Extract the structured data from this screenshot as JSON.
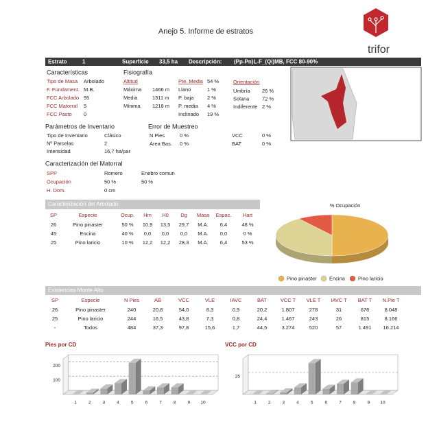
{
  "header": {
    "title": "Anejo 5. Informe de estratos",
    "logo": "trifor"
  },
  "strata": {
    "label": "Estrato",
    "number": "1",
    "area_label": "Superficie",
    "area": "33,5 ha",
    "desc_label": "Descripción:",
    "desc": "(Pp-Pn)L-F_(Qi)MB, FCC 80-90%"
  },
  "caracteristicas": {
    "title": "Características",
    "rows": [
      [
        "Tipo de Masa",
        "Arbolado"
      ],
      [
        "F. Fundament.",
        "M.B."
      ],
      [
        "FCC Arbolado",
        "95"
      ],
      [
        "FCC Matorral",
        "5"
      ],
      [
        "FCC Pasto",
        "0"
      ]
    ]
  },
  "fisiografia": {
    "title": "Fisiografía",
    "altitud": {
      "title": "Altitud",
      "rows": [
        [
          "Máxima",
          "1466 m"
        ],
        [
          "Media",
          "1311 m"
        ],
        [
          "Mínima",
          "1218 m"
        ]
      ]
    },
    "pendiente": {
      "title": "Pte. Media",
      "value": "54 %",
      "rows": [
        [
          "Llano",
          "1 %"
        ],
        [
          "P. baja",
          "2 %"
        ],
        [
          "P. media",
          "4 %"
        ],
        [
          "Inclinado",
          "19 %"
        ]
      ]
    },
    "orientacion": {
      "title": "Orientación",
      "rows": [
        [
          "Umbría",
          "26 %"
        ],
        [
          "Solana",
          "72 %"
        ],
        [
          "Indiferente",
          "2 %"
        ]
      ]
    }
  },
  "inventario": {
    "title": "Parámetros de Inventario",
    "rows": [
      [
        "Tipo de Inventario",
        "Clásico"
      ],
      [
        "Nº Parcelas",
        "2"
      ],
      [
        "Intensidad",
        "16,7 ha/par"
      ]
    ]
  },
  "error": {
    "title": "Error de Muestreo",
    "rows": [
      [
        "N Pies",
        "0 %",
        "VCC",
        "0 %"
      ],
      [
        "Area Bas.",
        "0 %",
        "BAT",
        "0 %"
      ]
    ]
  },
  "matorral": {
    "title": "Caracterización del Matorral",
    "rows": [
      [
        "SPP",
        "Romero",
        "Enebro comun"
      ],
      [
        "Ocupación",
        "50 %",
        "50 %"
      ],
      [
        "H. Dom.",
        "0 cm"
      ]
    ]
  },
  "arbolado": {
    "title": "Caracterización del Arbolado",
    "header": [
      "SP",
      "Especie",
      "Ocup.",
      "Hm",
      "H0",
      "Dg",
      "Masa",
      "Espac.",
      "Hart"
    ],
    "rows": [
      [
        "26",
        "Pino pinaster",
        "50 %",
        "10,9",
        "13,5",
        "29,7",
        "M.A.",
        "6,4",
        "48 %"
      ],
      [
        "45",
        "Encina",
        "40 %",
        "0,0",
        "0,0",
        "0,0",
        "M.A.",
        "0,0",
        "0 %"
      ],
      [
        "25",
        "Pino laricio",
        "10 %",
        "12,2",
        "12,2",
        "28,3",
        "M.A.",
        "6,4",
        "53 %"
      ]
    ]
  },
  "existencias": {
    "title": "Existencias Monte Alto",
    "header": [
      "SP",
      "Especie",
      "N Pies",
      "AB",
      "VCC",
      "VLE",
      "IAVC",
      "BAT",
      "VCC T",
      "VLE T",
      "IAVC T",
      "BAT T",
      "N.Pie T"
    ],
    "rows": [
      [
        "26",
        "Pino pinaster",
        "240",
        "20,8",
        "54,0",
        "8,3",
        "0,9",
        "20,2",
        "1.807",
        "278",
        "31",
        "676",
        "8.048"
      ],
      [
        "25",
        "Pino laricio",
        "244",
        "16,5",
        "43,8",
        "7,3",
        "0,8",
        "24,4",
        "1.467",
        "243",
        "26",
        "815",
        "8.166"
      ],
      [
        "-",
        "Todos",
        "484",
        "37,3",
        "97,8",
        "15,6",
        "1,7",
        "44,5",
        "3.274",
        "520",
        "57",
        "1.491",
        "16.214"
      ]
    ]
  },
  "chart_data": [
    {
      "type": "pie",
      "title": "% Ocupación",
      "categories": [
        "Pino pinaster",
        "Encina",
        "Pino laricio"
      ],
      "values": [
        50,
        40,
        10
      ],
      "colors": [
        "#e8b24f",
        "#ddd394",
        "#e05a44"
      ]
    },
    {
      "type": "bar",
      "title": "Pies por CD",
      "categories": [
        "1",
        "2",
        "3",
        "4",
        "5",
        "6",
        "7",
        "8",
        "9",
        "10"
      ],
      "values": [
        0,
        12,
        42,
        80,
        222,
        28,
        50,
        50,
        0,
        0
      ],
      "ylim": [
        0,
        250
      ],
      "yticks": [
        100,
        200
      ],
      "color": "#a9a9a9",
      "grid": true
    },
    {
      "type": "bar",
      "title": "VCC por CD",
      "categories": [
        "1",
        "2",
        "3",
        "4",
        "5",
        "6",
        "7",
        "8",
        "9",
        "10"
      ],
      "values": [
        0,
        1,
        3,
        10,
        44,
        8,
        15,
        17,
        0,
        0
      ],
      "ylim": [
        0,
        50
      ],
      "yticks": [
        25
      ],
      "color": "#a9a9a9",
      "grid": true
    }
  ]
}
